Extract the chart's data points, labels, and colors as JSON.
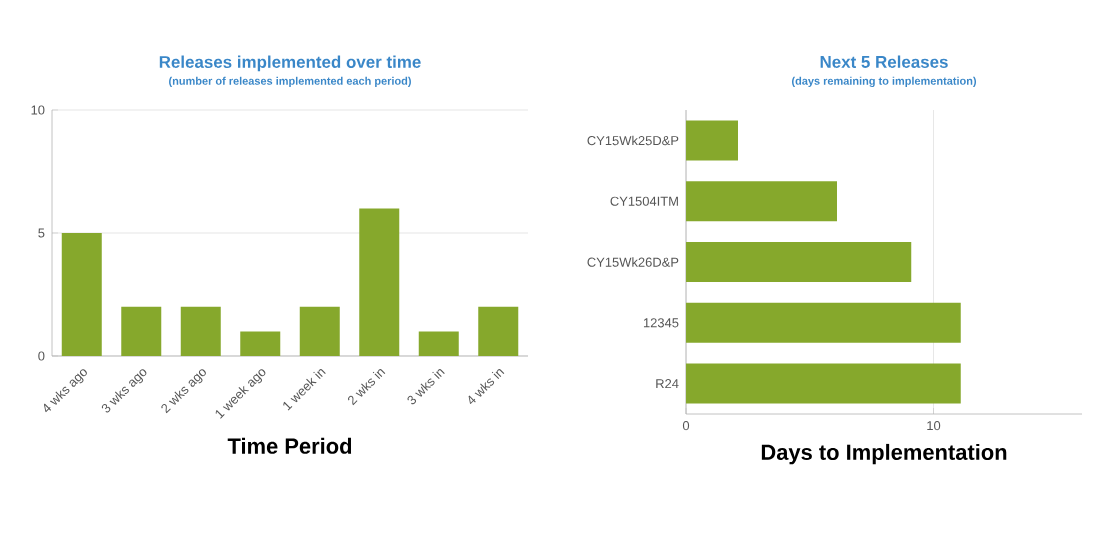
{
  "chart_data": [
    {
      "type": "bar",
      "title": "Releases implemented over time",
      "subtitle": "(number of releases implemented each period)",
      "xlabel": "Time Period",
      "categories": [
        "4 wks ago",
        "3 wks ago",
        "2 wks ago",
        "1 week ago",
        "1 week in",
        "2 wks in",
        "3 wks in",
        "4 wks in"
      ],
      "values": [
        5,
        2,
        2,
        1,
        2,
        6,
        1,
        2
      ],
      "color": "#86a82c",
      "ylim": [
        0,
        10
      ],
      "yticks": [
        0,
        5,
        10
      ],
      "grid": "y"
    },
    {
      "type": "bar",
      "orientation": "horizontal",
      "title": "Next 5 Releases",
      "subtitle": "(days remaining to implementation)",
      "xlabel": "Days to Implementation",
      "categories": [
        "CY15Wk25D&P",
        "CY1504ITM",
        "CY15Wk26D&P",
        "12345",
        "R24"
      ],
      "values": [
        2.1,
        6.1,
        9.1,
        11.1,
        11.1
      ],
      "color": "#86a82c",
      "xlim": [
        0,
        16
      ],
      "xticks": [
        0,
        10
      ],
      "grid": "x"
    }
  ]
}
